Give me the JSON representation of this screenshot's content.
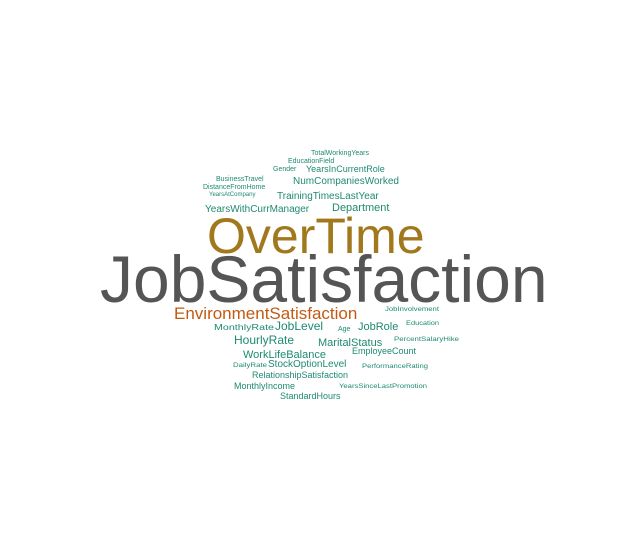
{
  "chart_data": {
    "type": "wordcloud",
    "colors": {
      "gray": "#555555",
      "gold": "#a2781d",
      "orange": "#c25a11",
      "teal": "#1f8a70"
    },
    "words": [
      {
        "text": "JobSatisfaction",
        "color": "gray"
      },
      {
        "text": "OverTime",
        "color": "gold"
      },
      {
        "text": "EnvironmentSatisfaction",
        "color": "orange"
      },
      {
        "text": "Department",
        "color": "teal"
      },
      {
        "text": "YearsWithCurrManager",
        "color": "teal"
      },
      {
        "text": "TrainingTimesLastYear",
        "color": "teal"
      },
      {
        "text": "NumCompaniesWorked",
        "color": "teal"
      },
      {
        "text": "YearsInCurrentRole",
        "color": "teal"
      },
      {
        "text": "EducationField",
        "color": "teal"
      },
      {
        "text": "TotalWorkingYears",
        "color": "teal"
      },
      {
        "text": "Gender",
        "color": "teal"
      },
      {
        "text": "BusinessTravel",
        "color": "teal"
      },
      {
        "text": "DistanceFromHome",
        "color": "teal"
      },
      {
        "text": "YearsAtCompany",
        "color": "teal"
      },
      {
        "text": "JobLevel",
        "color": "teal"
      },
      {
        "text": "JobRole",
        "color": "teal"
      },
      {
        "text": "MonthlyRate",
        "color": "teal"
      },
      {
        "text": "Age",
        "color": "teal"
      },
      {
        "text": "JobInvolvement",
        "color": "teal"
      },
      {
        "text": "Education",
        "color": "teal"
      },
      {
        "text": "HourlyRate",
        "color": "teal"
      },
      {
        "text": "MaritalStatus",
        "color": "teal"
      },
      {
        "text": "PercentSalaryHike",
        "color": "teal"
      },
      {
        "text": "WorkLifeBalance",
        "color": "teal"
      },
      {
        "text": "EmployeeCount",
        "color": "teal"
      },
      {
        "text": "StockOptionLevel",
        "color": "teal"
      },
      {
        "text": "DailyRate",
        "color": "teal"
      },
      {
        "text": "PerformanceRating",
        "color": "teal"
      },
      {
        "text": "RelationshipSatisfaction",
        "color": "teal"
      },
      {
        "text": "MonthlyIncome",
        "color": "teal"
      },
      {
        "text": "YearsSinceLastPromotion",
        "color": "teal"
      },
      {
        "text": "StandardHours",
        "color": "teal"
      }
    ]
  }
}
